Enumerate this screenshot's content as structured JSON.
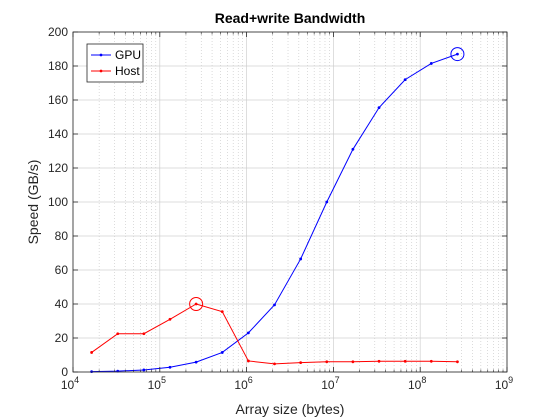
{
  "chart_data": {
    "type": "line",
    "title": "Read+write Bandwidth",
    "xlabel": "Array size (bytes)",
    "ylabel": "Speed (GB/s)",
    "xscale": "log",
    "xlim": [
      10000,
      1000000000
    ],
    "ylim": [
      0,
      200
    ],
    "yticks": [
      0,
      20,
      40,
      60,
      80,
      100,
      120,
      140,
      160,
      180,
      200
    ],
    "xticks": [
      {
        "value": 10000,
        "base": "10",
        "exp": "4"
      },
      {
        "value": 100000,
        "base": "10",
        "exp": "5"
      },
      {
        "value": 1000000,
        "base": "10",
        "exp": "6"
      },
      {
        "value": 10000000,
        "base": "10",
        "exp": "7"
      },
      {
        "value": 100000000,
        "base": "10",
        "exp": "8"
      },
      {
        "value": 1000000000,
        "base": "10",
        "exp": "9"
      }
    ],
    "grid": true,
    "minor_grid": true,
    "legend_position": "top-left",
    "series": [
      {
        "name": "GPU",
        "color": "#0000ff",
        "x": [
          16384,
          32768,
          65536,
          131072,
          262144,
          524288,
          1048576,
          2097152,
          4194304,
          8388608,
          16777216,
          33554432,
          67108864,
          134217728,
          268435456
        ],
        "y": [
          0.2,
          0.5,
          1.2,
          2.8,
          5.8,
          11.5,
          23,
          39.5,
          66.5,
          100,
          131,
          155.5,
          172,
          181.5,
          187
        ],
        "highlight": {
          "x": 268435456,
          "y": 187
        }
      },
      {
        "name": "Host",
        "color": "#ff0000",
        "x": [
          16384,
          32768,
          65536,
          131072,
          262144,
          524288,
          1048576,
          2097152,
          4194304,
          8388608,
          16777216,
          33554432,
          67108864,
          134217728,
          268435456
        ],
        "y": [
          11.5,
          22.5,
          22.5,
          31,
          40,
          35.5,
          6.5,
          4.8,
          5.5,
          6,
          6,
          6.3,
          6.3,
          6.3,
          6
        ],
        "highlight": {
          "x": 262144,
          "y": 40
        }
      }
    ]
  }
}
